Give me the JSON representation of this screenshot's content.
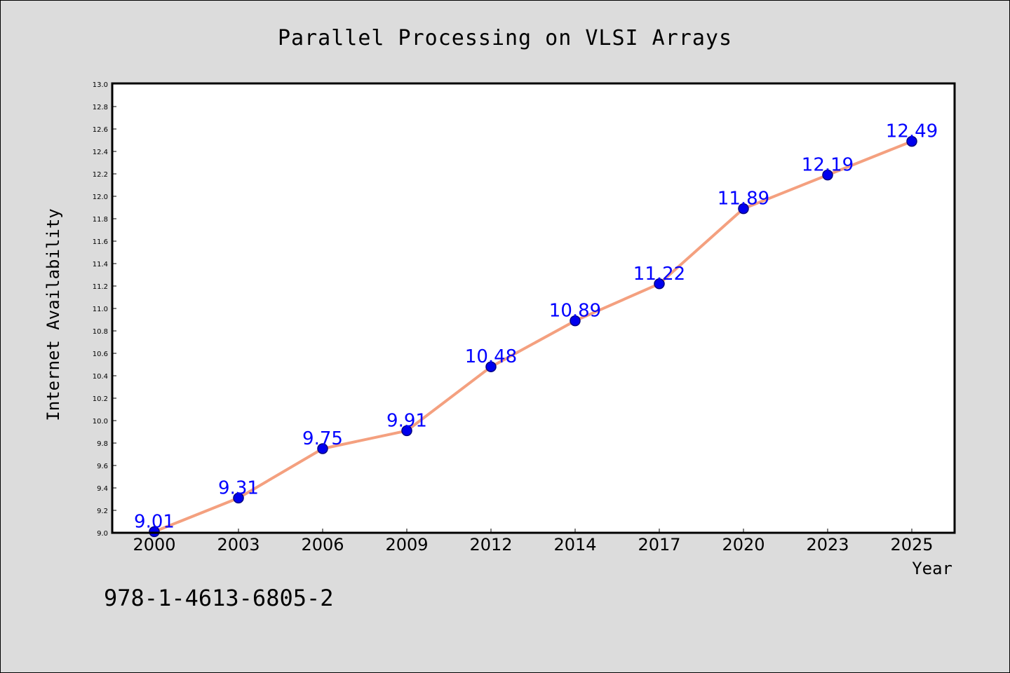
{
  "chart_data": {
    "type": "line",
    "title": "Parallel Processing on VLSI Arrays",
    "xlabel": "Year",
    "ylabel": "Internet Availability",
    "categories": [
      "2000",
      "2003",
      "2006",
      "2009",
      "2012",
      "2014",
      "2017",
      "2020",
      "2023",
      "2025"
    ],
    "series": [
      {
        "values": [
          9.01,
          9.31,
          9.75,
          9.91,
          10.48,
          10.89,
          11.22,
          11.89,
          12.19,
          12.49
        ],
        "labels": [
          "9.01",
          "9.31",
          "9.75",
          "9.91",
          "10.48",
          "10.89",
          "11.22",
          "11.89",
          "12.19",
          "12.49"
        ]
      }
    ],
    "ylim": [
      9.0,
      13.0
    ],
    "yticks": [
      "9.0",
      "9.2",
      "9.4",
      "9.6",
      "9.8",
      "10.0",
      "10.2",
      "10.4",
      "10.6",
      "10.8",
      "11.0",
      "11.2",
      "11.4",
      "11.6",
      "11.8",
      "12.0",
      "12.2",
      "12.4",
      "12.6",
      "12.8",
      "13.0"
    ],
    "grid": false,
    "legend": "none",
    "colors": {
      "line": "#f4a07f",
      "marker": "#0000ee",
      "marker_edge": "#000080",
      "data_label": "#0000ff",
      "plot_bg": "#ffffff",
      "page_bg": "#dcdcdc"
    }
  },
  "footer": {
    "isbn": "978-1-4613-6805-2"
  }
}
